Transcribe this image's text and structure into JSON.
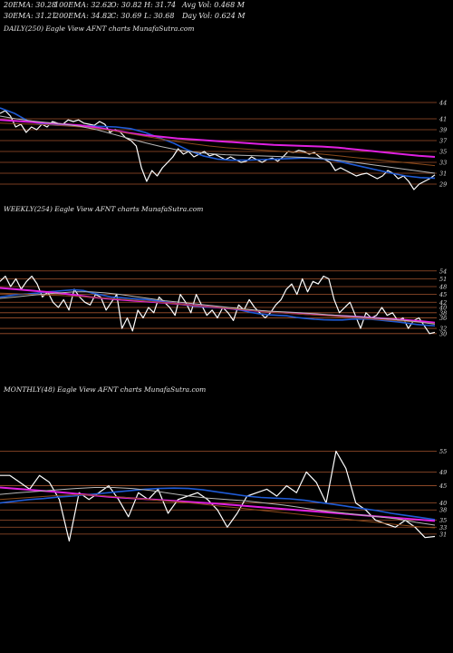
{
  "header": {
    "row1": [
      "20EMA: 30.28",
      "100EMA: 32.62",
      "O: 30.82",
      "H: 31.74",
      "Avg Vol: 0.468  M"
    ],
    "row2": [
      "30EMA: 31.21",
      "200EMA: 34.82",
      "C: 30.69",
      "L: 30.68",
      "Day Vol: 0.624  M"
    ]
  },
  "colors": {
    "background": "#000000",
    "price": "#ffffff",
    "ema_short": "#1f5bd6",
    "ema_long": "#e020e0",
    "ema_mid": "#8b4a1a",
    "ema_alt": "#b8b8b8",
    "level_line": "#a0522d"
  },
  "chart_data": [
    {
      "type": "line",
      "label": "DAILY(250) Eagle  View  AFNT charts MunafaSutra.com",
      "y_ticks": [
        "44",
        "41",
        "39",
        "37",
        "35",
        "33",
        "31",
        "29"
      ],
      "series": [
        {
          "role": "price",
          "values": [
            42,
            42.5,
            41.5,
            39.5,
            40,
            38.5,
            39.5,
            39,
            40,
            39.5,
            40.5,
            40.2,
            40,
            40.8,
            40.5,
            40.8,
            40.2,
            40,
            39.8,
            40.5,
            40,
            38.5,
            39,
            38.5,
            37.5,
            37,
            36,
            32,
            29.5,
            31.5,
            30.5,
            32,
            33,
            34,
            35.5,
            34.5,
            35,
            34,
            34.5,
            35,
            34.2,
            34.5,
            34,
            33.5,
            34,
            33.5,
            33,
            33.2,
            34,
            33.5,
            33,
            33.5,
            33.8,
            33.2,
            34,
            35,
            34.8,
            35.2,
            35,
            34.5,
            34.8,
            34,
            33.5,
            33,
            31.5,
            32,
            31.5,
            31,
            30.5,
            30.8,
            31,
            30.5,
            30,
            30.5,
            31.5,
            31,
            30,
            30.5,
            29.5,
            28,
            29,
            29.5,
            30,
            30.7
          ]
        },
        {
          "role": "ema-blue",
          "values": [
            43,
            42,
            40.5,
            40,
            39.8,
            39.8,
            39.7,
            39.6,
            39.5,
            39.2,
            38.5,
            37.5,
            36.5,
            35.2,
            34.2,
            33.6,
            33.4,
            33.4,
            33.5,
            33.6,
            33.7,
            33.8,
            33.7,
            33.4,
            32.8,
            32.2,
            31.6,
            31,
            30.5,
            30.2,
            30.1
          ]
        },
        {
          "role": "ema-magenta",
          "values": [
            40.8,
            40.6,
            40.4,
            40.2,
            40.0,
            39.8,
            39.4,
            38.9,
            38.4,
            38.0,
            37.7,
            37.4,
            37.2,
            37.0,
            36.8,
            36.6,
            36.4,
            36.2,
            36.1,
            36.0,
            35.9,
            35.7,
            35.4,
            35.1,
            34.8,
            34.5,
            34.2,
            34.0
          ]
        },
        {
          "role": "ema-brown",
          "values": [
            40.2,
            40.1,
            40.0,
            39.9,
            39.7,
            39.5,
            39.2,
            38.8,
            38.3,
            37.8,
            37.3,
            36.8,
            36.4,
            36.0,
            35.7,
            35.5,
            35.3,
            35.1,
            34.9,
            34.7,
            34.5,
            34.2,
            33.9,
            33.6,
            33.3,
            33.0,
            32.7,
            32.4
          ]
        },
        {
          "role": "ema-grey",
          "values": [
            41.5,
            41.0,
            40.6,
            40.3,
            40.0,
            39.6,
            39.0,
            38.2,
            37.4,
            36.6,
            35.9,
            35.3,
            34.9,
            34.6,
            34.4,
            34.3,
            34.2,
            34.1,
            34.0,
            33.9,
            33.7,
            33.4,
            33.0,
            32.6,
            32.2,
            31.8,
            31.4,
            31.0
          ]
        }
      ]
    },
    {
      "type": "line",
      "label": "WEEKLY(254) Eagle  View  AFNT charts MunafaSutra.com",
      "y_ticks": [
        "54",
        "51",
        "48",
        "45",
        "42",
        "40",
        "38",
        "36",
        "32",
        "30"
      ],
      "series": [
        {
          "role": "price",
          "values": [
            50,
            52,
            48,
            51,
            47,
            50,
            52,
            49,
            44,
            46,
            42,
            40,
            43,
            39,
            47,
            44,
            42,
            41,
            45,
            44,
            39,
            42,
            45,
            32,
            36,
            31,
            39,
            36,
            40,
            38,
            44,
            42,
            40,
            37,
            45,
            42,
            38,
            45,
            41,
            37,
            39,
            36,
            40,
            38,
            35,
            41,
            39,
            43,
            40,
            38,
            36,
            38,
            41,
            43,
            47,
            49,
            45,
            51,
            46,
            50,
            49,
            52,
            51,
            43,
            38,
            40,
            42,
            37,
            32,
            38,
            36,
            37,
            40,
            37,
            38,
            35,
            36,
            32,
            35,
            36,
            33,
            30,
            30.5
          ]
        },
        {
          "role": "ema-blue",
          "values": [
            44,
            44.5,
            45,
            45.2,
            45.5,
            46,
            46.2,
            46.5,
            46.8,
            46.5,
            45.5,
            44.8,
            44,
            43.8,
            43.5,
            43.2,
            43,
            42.5,
            42,
            41.5,
            41,
            40.5,
            40.2,
            40,
            39.8,
            39.5,
            39,
            38.2,
            37.6,
            37.2,
            37,
            36.8,
            36.2,
            35.8,
            35.5,
            35.3,
            35.2,
            35.2,
            35.5,
            35.6,
            35.5,
            35.2,
            34.8,
            34.5,
            34,
            33.5,
            33.2,
            33
          ]
        },
        {
          "role": "ema-magenta",
          "values": [
            47.5,
            47.0,
            46.5,
            46.0,
            45.5,
            44.8,
            44.0,
            43.5,
            43.0,
            42.6,
            42.2,
            41.8,
            41.3,
            40.8,
            40.3,
            39.8,
            39.3,
            38.8,
            38.4,
            38.0,
            37.6,
            37.3,
            37.0,
            36.7,
            36.4,
            36.0,
            35.6,
            35.2,
            34.8,
            34.2
          ]
        },
        {
          "role": "ema-brown",
          "values": [
            45.5,
            45.3,
            45.0,
            44.8,
            44.6,
            44.3,
            44.0,
            43.6,
            43.2,
            42.8,
            42.3,
            41.8,
            41.3,
            40.8,
            40.3,
            39.8,
            39.3,
            38.8,
            38.3,
            37.9,
            37.5,
            37.1,
            36.7,
            36.3,
            35.9,
            35.5,
            35.1,
            34.7,
            34.3,
            33.8
          ]
        },
        {
          "role": "ema-grey",
          "values": [
            43.5,
            44.0,
            44.6,
            45.2,
            45.6,
            46.0,
            46.0,
            45.6,
            45.0,
            44.2,
            43.4,
            42.6,
            42.0,
            41.4,
            40.8,
            40.2,
            39.6,
            39.0,
            38.6,
            38.3,
            38.0,
            37.6,
            37.2,
            36.8,
            36.4,
            36.0,
            35.6,
            35.0,
            34.4,
            33.6
          ]
        }
      ]
    },
    {
      "type": "line",
      "label": "MONTHLY(48) Eagle  View  AFNT charts MunafaSutra.com",
      "y_ticks": [
        "55",
        "49",
        "45",
        "40",
        "38",
        "35",
        "33",
        "31"
      ],
      "series": [
        {
          "role": "price",
          "values": [
            48,
            48,
            46,
            44,
            48,
            46,
            41,
            29,
            43,
            41,
            43,
            45,
            41,
            36,
            43,
            41,
            44,
            37,
            41,
            42,
            43,
            41,
            38,
            33,
            37,
            42,
            43,
            44,
            42,
            45,
            43,
            49,
            46,
            40,
            55,
            50,
            40,
            38,
            35,
            34,
            33,
            35,
            33,
            30,
            30.3
          ]
        },
        {
          "role": "ema-blue",
          "values": [
            40,
            40.5,
            41,
            41.3,
            41.7,
            42,
            42.4,
            42.8,
            43.2,
            43.6,
            44,
            44.2,
            44.3,
            44.2,
            43.8,
            43.2,
            42.6,
            42,
            41.6,
            41.4,
            41.2,
            40.8,
            40.2,
            39.6,
            39,
            38.4,
            37.8,
            37,
            36.4,
            35.8,
            35.2
          ]
        },
        {
          "role": "ema-magenta",
          "values": [
            44.5,
            44.0,
            43.5,
            43.0,
            42.4,
            41.8,
            41.4,
            41.0,
            40.6,
            40.2,
            39.8,
            39.3,
            38.8,
            38.3,
            37.8,
            37.3,
            36.8,
            36.3,
            35.8,
            35.3,
            34.8
          ]
        },
        {
          "role": "ema-brown",
          "values": [
            41.0,
            41.4,
            41.8,
            42.2,
            42.4,
            42.2,
            41.8,
            41.3,
            40.8,
            40.3,
            39.8,
            39.2,
            38.6,
            38.0,
            37.4,
            36.8,
            36.2,
            35.6,
            35.0,
            34.4,
            33.8,
            33.2,
            32.8
          ]
        },
        {
          "role": "ema-grey",
          "values": [
            42.5,
            43.0,
            43.4,
            43.8,
            44.2,
            44.5,
            44.5,
            44.2,
            43.6,
            42.8,
            42.0,
            41.4,
            41.0,
            40.6,
            40.0,
            39.4,
            38.6,
            37.8,
            37.2,
            36.6,
            36.0,
            35.4,
            34.4,
            33.6
          ]
        }
      ]
    }
  ]
}
